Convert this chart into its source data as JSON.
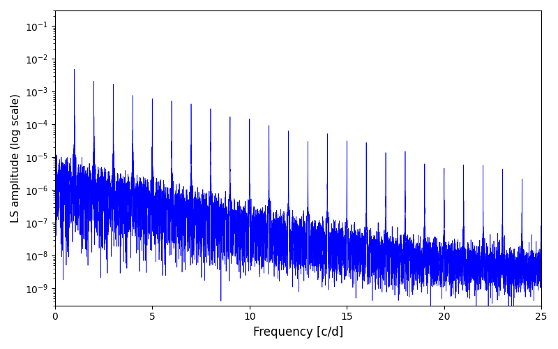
{
  "title": "",
  "xlabel": "Frequency [c/d]",
  "ylabel": "LS amplitude (log scale)",
  "xlim": [
    0,
    25
  ],
  "ylim": [
    3e-10,
    0.3
  ],
  "line_color": "#0000ff",
  "line_width": 0.5,
  "bg_color": "#ffffff",
  "figsize": [
    8.0,
    5.0
  ],
  "dpi": 100,
  "freq_max": 25.0,
  "n_points": 10000,
  "seed": 12345
}
